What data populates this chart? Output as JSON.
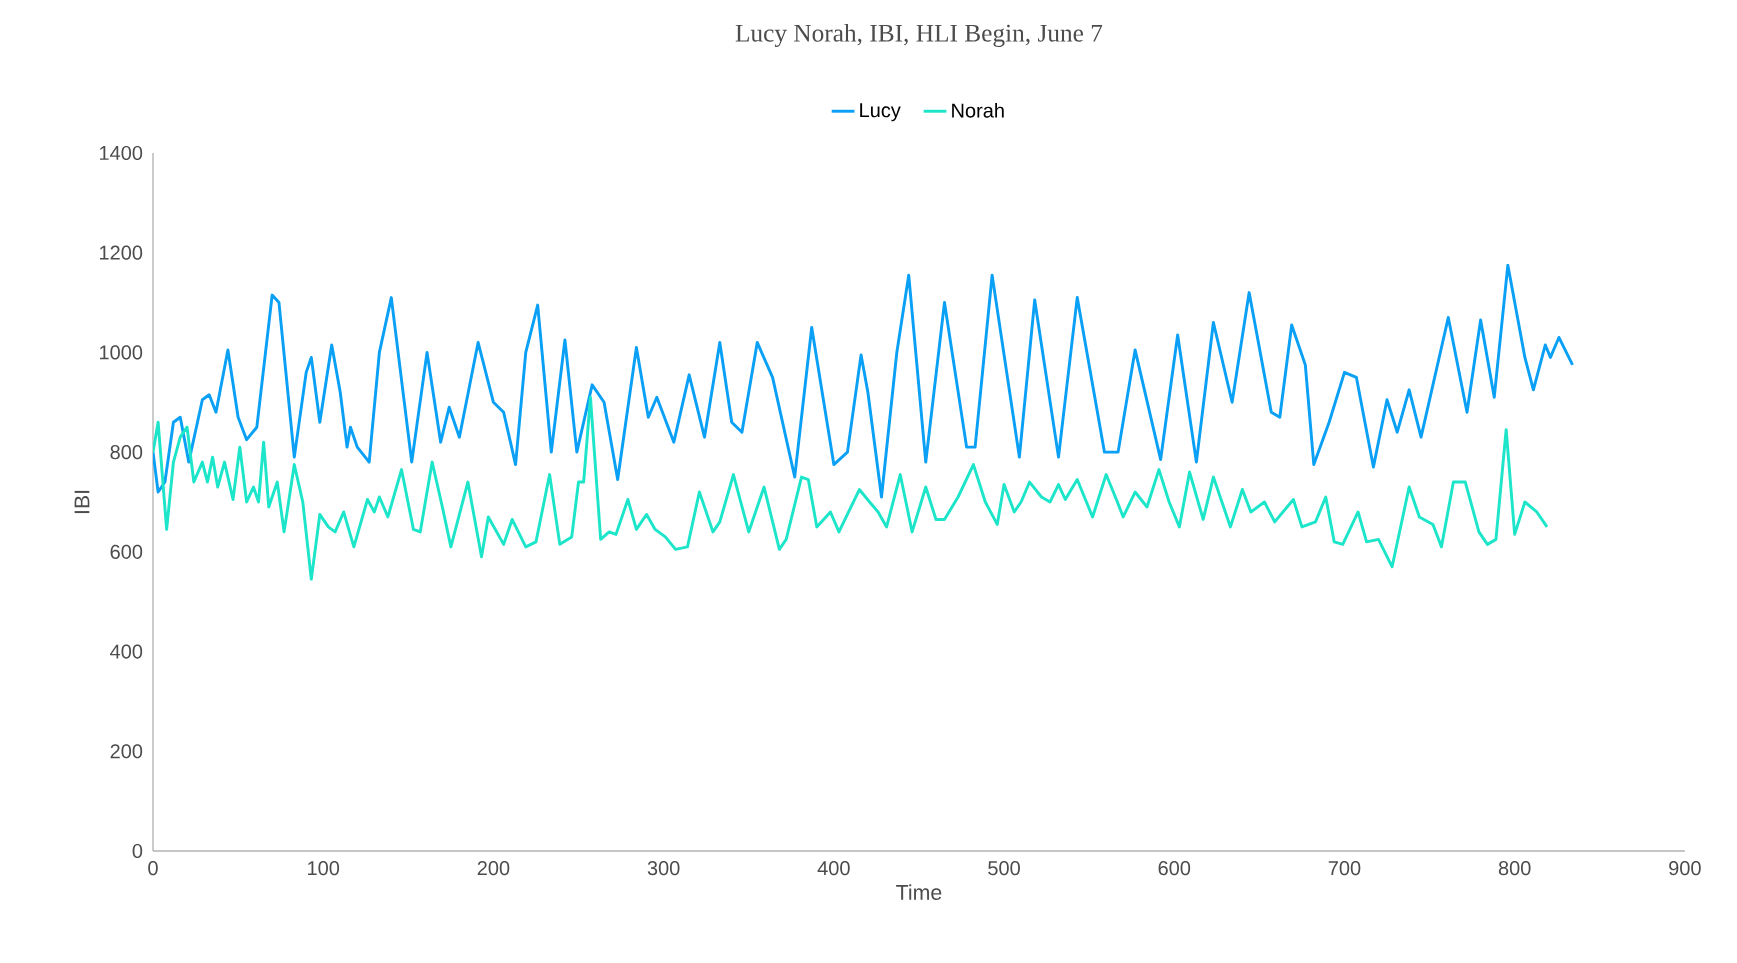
{
  "chart_data": {
    "type": "line",
    "title": "Lucy Norah, IBI, HLI Begin,  June 7",
    "xlabel": "Time",
    "ylabel": "IBI",
    "xlim": [
      0,
      900
    ],
    "xticks": [
      0,
      100,
      200,
      300,
      400,
      500,
      600,
      700,
      800,
      900
    ],
    "ylim": [
      0,
      1400
    ],
    "yticks": [
      0,
      200,
      400,
      600,
      800,
      1000,
      1200,
      1400
    ],
    "grid": false,
    "legend": "top",
    "marker": "none",
    "line_style": "solid",
    "series": [
      {
        "name": "Lucy",
        "color": "#0aa0f5",
        "x": [
          0,
          3,
          7,
          12,
          16,
          21,
          29,
          33,
          37,
          44,
          50,
          55,
          61,
          70,
          74,
          83,
          90,
          93,
          98,
          105,
          110,
          114,
          116,
          120,
          127,
          133,
          140,
          152,
          161,
          169,
          174,
          180,
          191,
          200,
          206,
          213,
          219,
          226,
          234,
          242,
          249,
          258,
          265,
          273,
          284,
          291,
          296,
          306,
          315,
          324,
          333,
          340,
          346,
          355,
          364,
          377,
          387,
          400,
          408,
          416,
          420,
          428,
          437,
          444,
          454,
          465,
          478,
          483,
          493,
          509,
          518,
          532,
          543,
          559,
          567,
          577,
          592,
          602,
          613,
          623,
          634,
          644,
          657,
          662,
          669,
          677,
          682,
          691,
          700,
          707,
          717,
          725,
          731,
          738,
          745,
          761,
          772,
          780,
          788,
          796,
          806,
          811,
          818,
          821,
          826,
          834
        ],
        "values": [
          800,
          720,
          740,
          860,
          870,
          780,
          905,
          915,
          880,
          1005,
          870,
          825,
          850,
          1115,
          1100,
          790,
          960,
          990,
          860,
          1015,
          920,
          810,
          850,
          810,
          780,
          1000,
          1110,
          780,
          1000,
          820,
          890,
          830,
          1020,
          900,
          880,
          775,
          1000,
          1095,
          800,
          1025,
          800,
          935,
          900,
          745,
          1010,
          870,
          910,
          820,
          955,
          830,
          1020,
          860,
          840,
          1020,
          950,
          750,
          1050,
          775,
          800,
          995,
          920,
          710,
          1000,
          1155,
          780,
          1100,
          810,
          810,
          1155,
          790,
          1105,
          790,
          1110,
          800,
          800,
          1005,
          785,
          1035,
          780,
          1060,
          900,
          1120,
          880,
          870,
          1055,
          975,
          775,
          860,
          960,
          950,
          770,
          905,
          840,
          925,
          830,
          1070,
          880,
          1065,
          910,
          1175,
          990,
          925,
          1015,
          990,
          1030,
          975
        ]
      },
      {
        "name": "Norah",
        "color": "#1de5c9",
        "x": [
          0,
          3,
          8,
          12,
          16,
          20,
          24,
          29,
          32,
          35,
          38,
          42,
          47,
          51,
          55,
          59,
          62,
          65,
          68,
          73,
          77,
          83,
          88,
          93,
          98,
          103,
          107,
          112,
          118,
          126,
          130,
          133,
          138,
          146,
          153,
          157,
          164,
          170,
          175,
          185,
          193,
          197,
          206,
          211,
          219,
          225,
          233,
          239,
          246,
          250,
          253,
          257,
          263,
          268,
          272,
          279,
          284,
          290,
          295,
          301,
          307,
          314,
          321,
          329,
          333,
          341,
          350,
          359,
          368,
          372,
          381,
          385,
          390,
          398,
          403,
          415,
          421,
          426,
          431,
          439,
          446,
          454,
          460,
          465,
          473,
          482,
          489,
          496,
          500,
          506,
          510,
          515,
          522,
          527,
          532,
          536,
          543,
          552,
          560,
          566,
          570,
          577,
          584,
          591,
          597,
          603,
          609,
          617,
          623,
          633,
          640,
          645,
          653,
          659,
          670,
          675,
          683,
          689,
          694,
          699,
          708,
          713,
          720,
          728,
          738,
          744,
          752,
          757,
          764,
          771,
          779,
          784,
          789,
          795,
          800,
          806,
          813,
          819
        ],
        "values": [
          800,
          860,
          645,
          780,
          830,
          850,
          740,
          780,
          740,
          790,
          730,
          780,
          705,
          810,
          700,
          730,
          700,
          820,
          690,
          740,
          640,
          775,
          700,
          545,
          675,
          650,
          640,
          680,
          610,
          705,
          680,
          710,
          670,
          765,
          645,
          640,
          780,
          690,
          610,
          740,
          590,
          670,
          615,
          665,
          610,
          620,
          755,
          615,
          630,
          740,
          740,
          910,
          625,
          640,
          635,
          705,
          645,
          675,
          645,
          630,
          605,
          610,
          720,
          640,
          660,
          755,
          640,
          730,
          605,
          625,
          750,
          745,
          650,
          680,
          640,
          725,
          700,
          680,
          650,
          755,
          640,
          730,
          665,
          665,
          710,
          775,
          700,
          655,
          735,
          680,
          700,
          740,
          710,
          700,
          735,
          705,
          745,
          670,
          755,
          705,
          670,
          720,
          690,
          765,
          700,
          650,
          760,
          665,
          750,
          650,
          725,
          680,
          700,
          660,
          705,
          650,
          660,
          710,
          620,
          615,
          680,
          620,
          625,
          570,
          730,
          670,
          655,
          610,
          740,
          740,
          640,
          615,
          625,
          845,
          635,
          700,
          680,
          650
        ]
      }
    ]
  }
}
